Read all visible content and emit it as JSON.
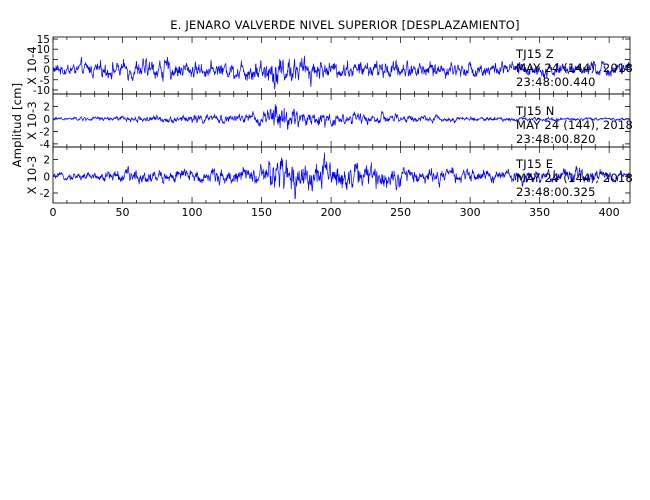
{
  "chart_data": {
    "type": "line",
    "title": "E. JENARO VALVERDE NIVEL SUPERIOR [DESPLAZAMIENTO]",
    "ylabel": "Amplitud [cm]",
    "xlim": [
      0,
      415
    ],
    "x_ticks": [
      0,
      50,
      100,
      150,
      200,
      250,
      300,
      350,
      400
    ],
    "x_tick_labels": [
      "0",
      "50",
      "100",
      "150",
      "200",
      "250",
      "300",
      "350",
      "400"
    ],
    "grid": false,
    "line_color": "#0000ff",
    "panels": [
      {
        "name": "TJ15 Z",
        "scale_label": "X 10-4",
        "ylim": [
          -12,
          16
        ],
        "y_tick_labels": [
          "15",
          "10",
          "5",
          "0",
          "-5",
          "-10"
        ],
        "channel": "TJ15 Z",
        "date": "MAY 24 (144), 2018",
        "time": "23:48:00.440",
        "envelope": [
          [
            0,
            4
          ],
          [
            40,
            6
          ],
          [
            80,
            7
          ],
          [
            120,
            5
          ],
          [
            150,
            9
          ],
          [
            160,
            12
          ],
          [
            175,
            9
          ],
          [
            200,
            6
          ],
          [
            250,
            6
          ],
          [
            300,
            5
          ],
          [
            350,
            5
          ],
          [
            400,
            5
          ],
          [
            415,
            4
          ]
        ]
      },
      {
        "name": "TJ15 N",
        "scale_label": "X 10-3",
        "ylim": [
          -4.5,
          4
        ],
        "y_tick_labels": [
          "2",
          "0",
          "-2",
          "-4"
        ],
        "channel": "TJ15 N",
        "date": "MAY 24 (144), 2018",
        "time": "23:48:00.820",
        "envelope": [
          [
            0,
            0.3
          ],
          [
            50,
            0.6
          ],
          [
            100,
            0.9
          ],
          [
            150,
            1.2
          ],
          [
            157,
            3.5
          ],
          [
            165,
            3
          ],
          [
            180,
            2.2
          ],
          [
            200,
            1.6
          ],
          [
            230,
            1.2
          ],
          [
            260,
            0.8
          ],
          [
            300,
            0.5
          ],
          [
            350,
            0.4
          ],
          [
            415,
            0.3
          ]
        ]
      },
      {
        "name": "TJ15 E",
        "scale_label": "X 10-3",
        "ylim": [
          -3.2,
          3.5
        ],
        "y_tick_labels": [
          "2",
          "0",
          "-2"
        ],
        "channel": "TJ15 E",
        "date": "MAY 24 (144), 2018",
        "time": "23:48:00.325",
        "envelope": [
          [
            0,
            0.4
          ],
          [
            30,
            0.8
          ],
          [
            50,
            1.2
          ],
          [
            100,
            1.2
          ],
          [
            150,
            1.5
          ],
          [
            157,
            2.8
          ],
          [
            165,
            3.3
          ],
          [
            180,
            2.8
          ],
          [
            210,
            2.5
          ],
          [
            240,
            1.8
          ],
          [
            280,
            1.2
          ],
          [
            330,
            1
          ],
          [
            380,
            1.2
          ],
          [
            415,
            0.8
          ]
        ]
      }
    ]
  }
}
